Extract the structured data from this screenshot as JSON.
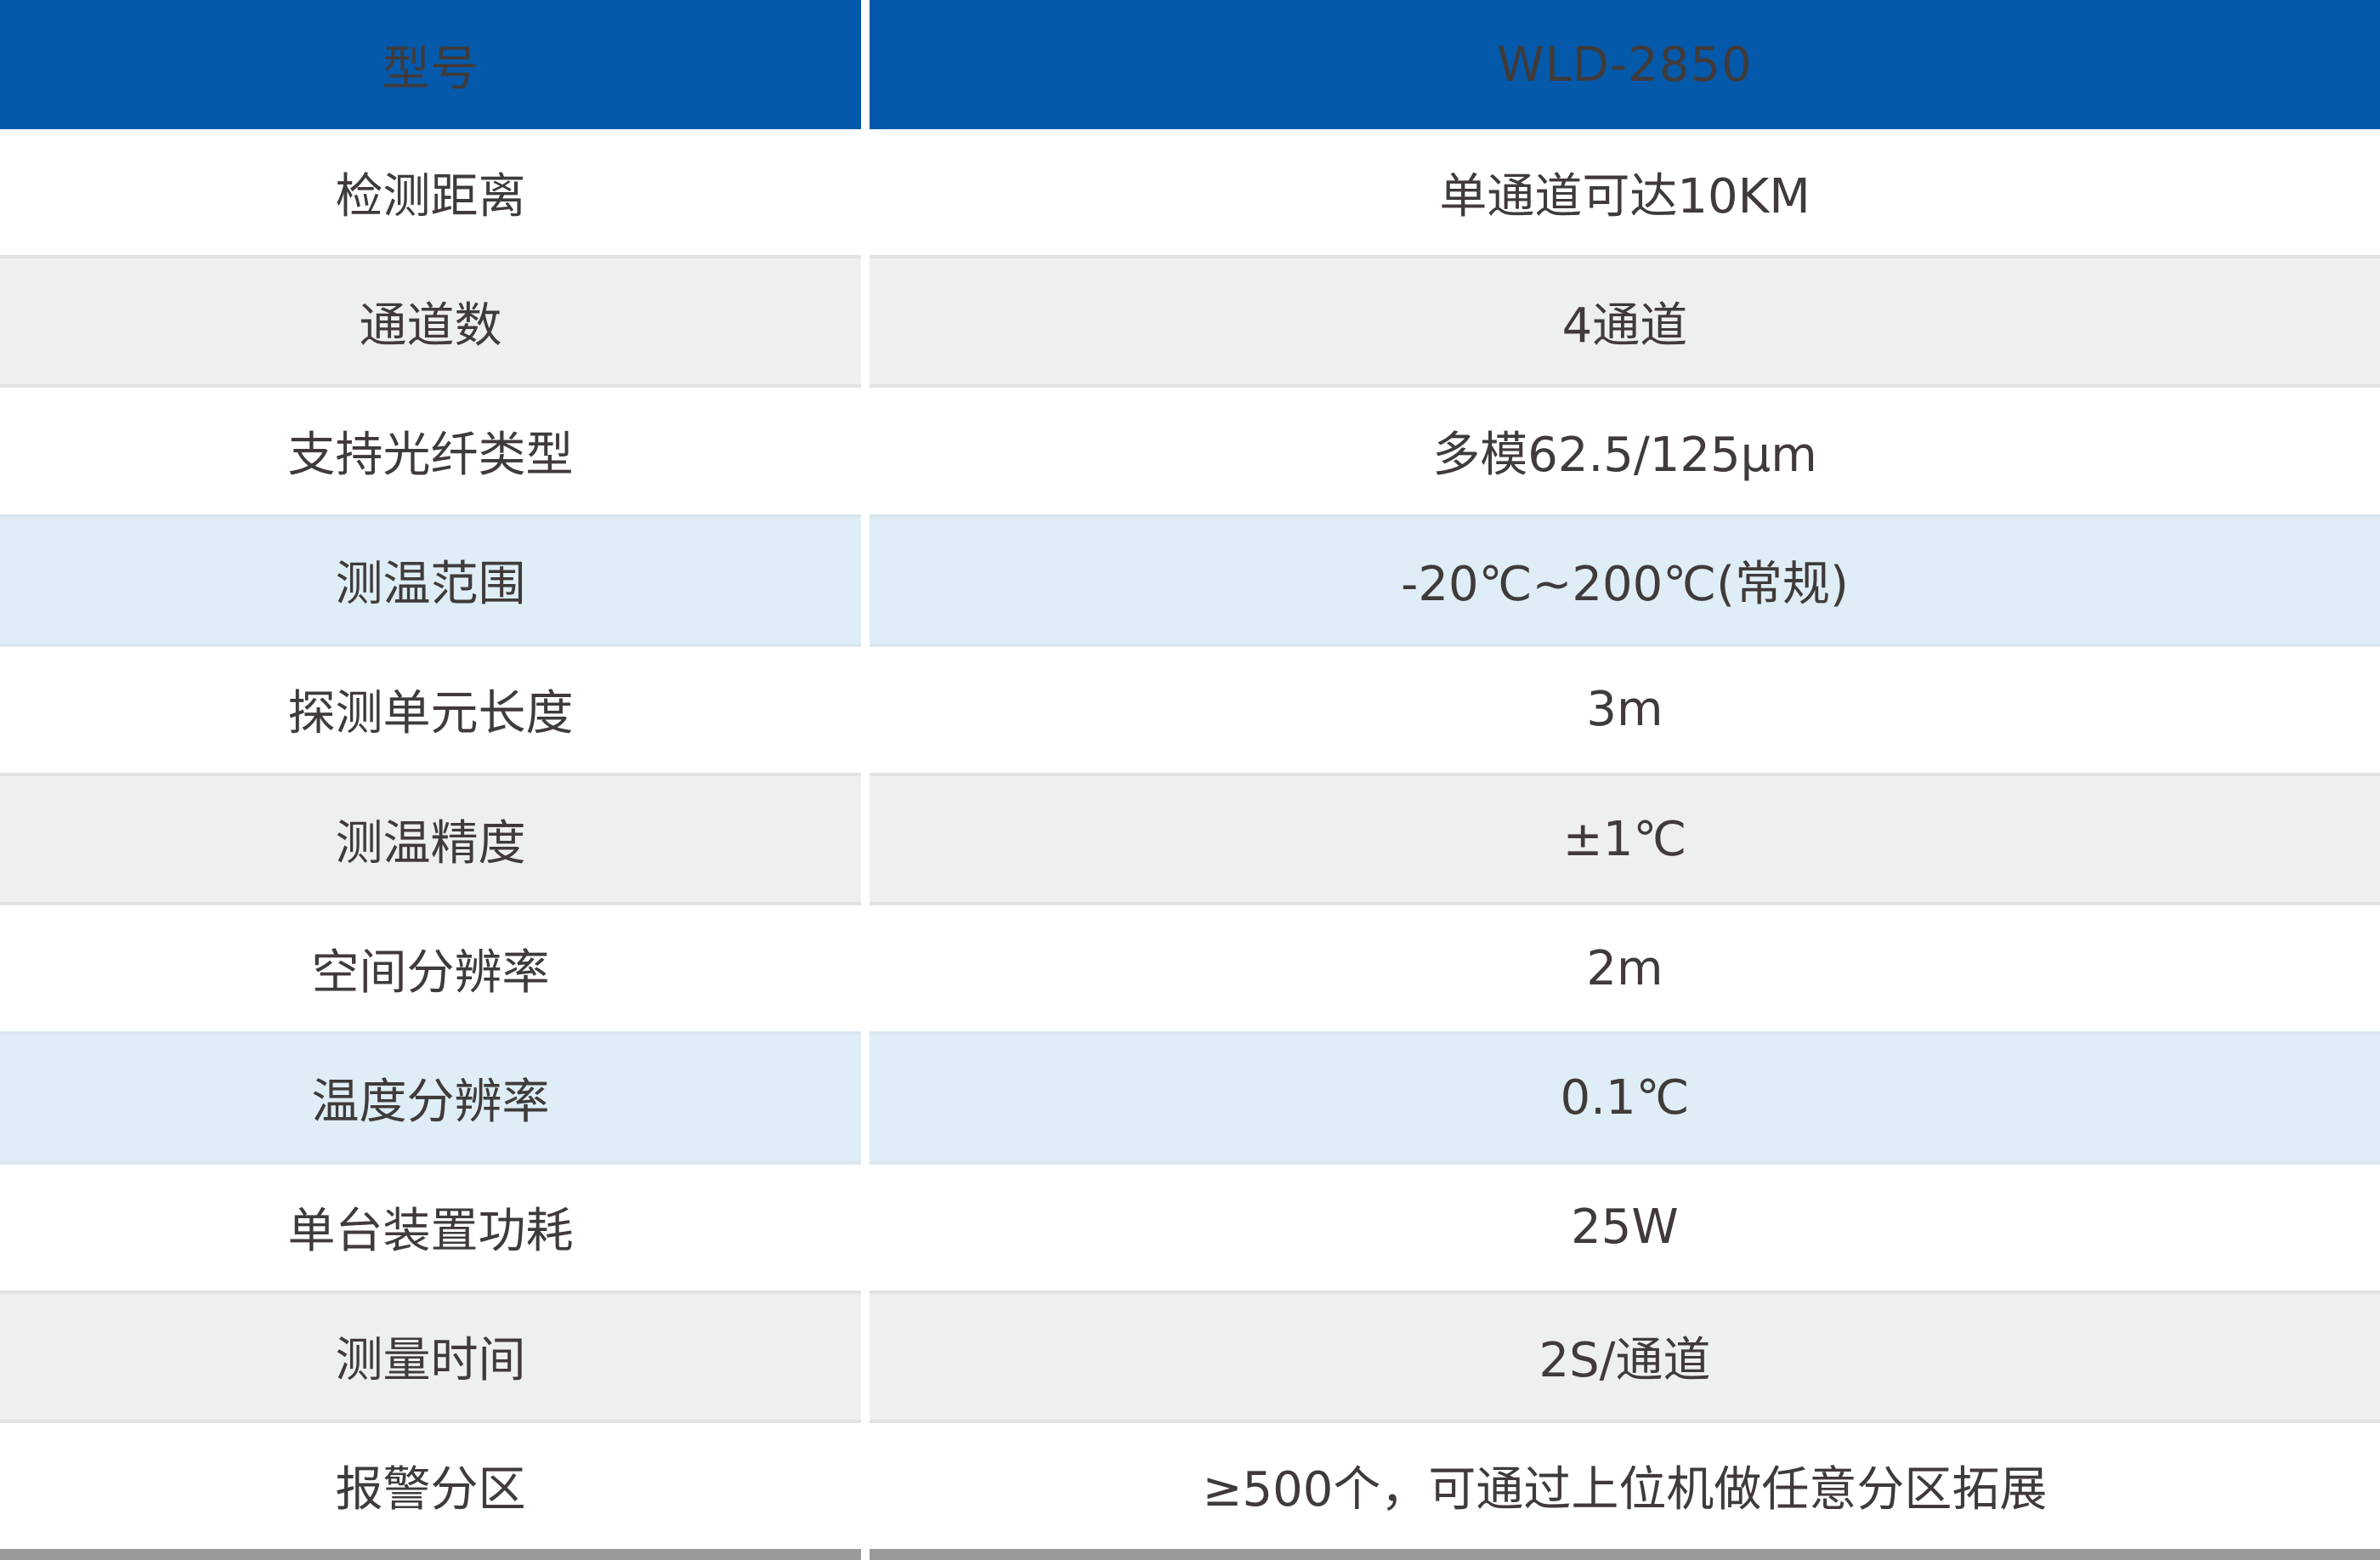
{
  "table": {
    "header": {
      "model_label": "型号",
      "model_value": "WLD-2850"
    },
    "rows": [
      {
        "label": "检测距离",
        "value": "单通道可达10KM"
      },
      {
        "label": "通道数",
        "value": "4通道"
      },
      {
        "label": "支持光纤类型",
        "value": "多模62.5/125μm"
      },
      {
        "label": "测温范围",
        "value": "-20℃~200℃(常规)"
      },
      {
        "label": "探测单元长度",
        "value": "3m"
      },
      {
        "label": "测温精度",
        "value": "±1℃"
      },
      {
        "label": "空间分辨率",
        "value": "2m"
      },
      {
        "label": "温度分辨率",
        "value": "0.1℃"
      },
      {
        "label": "单台装置功耗",
        "value": "25W"
      },
      {
        "label": "测量时间",
        "value": "2S/通道"
      },
      {
        "label": "报警分区",
        "value": "≥500个，可通过上位机做任意分区拓展"
      }
    ]
  },
  "colors": {
    "header_bg": "#0559aa",
    "header_text": "#ffffff",
    "gray_row": "#eeefef",
    "blue_row": "#deedf6",
    "text": "#403b3a",
    "bar": "#9a9a9a"
  }
}
